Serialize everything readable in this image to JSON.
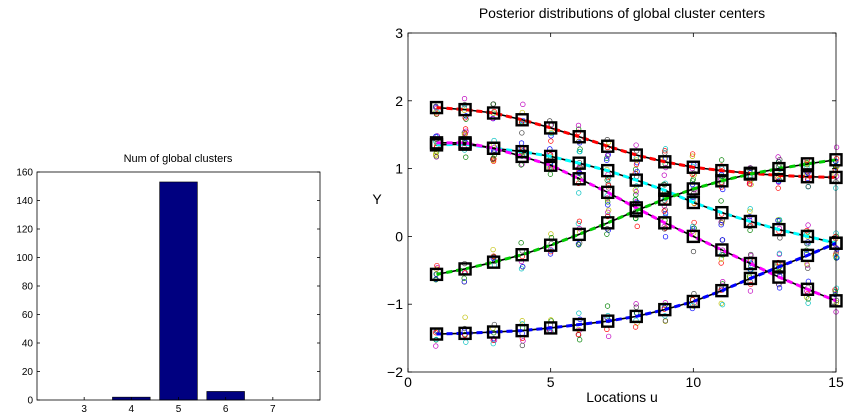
{
  "chart_data": [
    {
      "type": "bar",
      "title": "Num of global clusters",
      "xlabel": "",
      "ylabel": "",
      "categories": [
        "3",
        "4",
        "5",
        "6",
        "7"
      ],
      "values": [
        0,
        2,
        153,
        6,
        0
      ],
      "ylim": [
        0,
        160
      ],
      "yticks": [
        "0",
        "20",
        "40",
        "60",
        "80",
        "100",
        "120",
        "140",
        "160"
      ],
      "bar_color": "#000080",
      "grid": false
    },
    {
      "type": "line",
      "title": "Posterior distributions of global cluster centers",
      "xlabel": "Locations u",
      "ylabel": "Y",
      "xlim": [
        0,
        15
      ],
      "ylim": [
        -2,
        3
      ],
      "xticks": [
        "0",
        "5",
        "10",
        "15"
      ],
      "yticks": [
        "−2",
        "−1",
        "0",
        "1",
        "2",
        "3"
      ],
      "grid": false,
      "x": [
        1,
        2,
        3,
        4,
        5,
        6,
        7,
        8,
        9,
        10,
        11,
        12,
        13,
        14,
        15
      ],
      "series": [
        {
          "color": "#ff0000",
          "values": [
            1.9,
            1.87,
            1.82,
            1.72,
            1.6,
            1.47,
            1.33,
            1.2,
            1.1,
            1.02,
            0.97,
            0.93,
            0.9,
            0.88,
            0.87
          ]
        },
        {
          "color": "#00ffff",
          "values": [
            1.35,
            1.36,
            1.3,
            1.25,
            1.18,
            1.08,
            0.97,
            0.83,
            0.68,
            0.5,
            0.35,
            0.22,
            0.1,
            0.0,
            -0.1
          ]
        },
        {
          "color": "#ff00ff",
          "values": [
            1.38,
            1.38,
            1.3,
            1.18,
            1.05,
            0.85,
            0.65,
            0.42,
            0.2,
            0.0,
            -0.2,
            -0.4,
            -0.6,
            -0.78,
            -0.95
          ]
        },
        {
          "color": "#00cc00",
          "values": [
            -0.56,
            -0.48,
            -0.38,
            -0.27,
            -0.13,
            0.03,
            0.2,
            0.38,
            0.55,
            0.7,
            0.82,
            0.92,
            1.0,
            1.07,
            1.13
          ]
        },
        {
          "color": "#0000ff",
          "values": [
            -1.44,
            -1.43,
            -1.41,
            -1.39,
            -1.35,
            -1.3,
            -1.25,
            -1.18,
            -1.08,
            -0.96,
            -0.8,
            -0.62,
            -0.45,
            -0.28,
            -0.1
          ]
        }
      ]
    }
  ]
}
